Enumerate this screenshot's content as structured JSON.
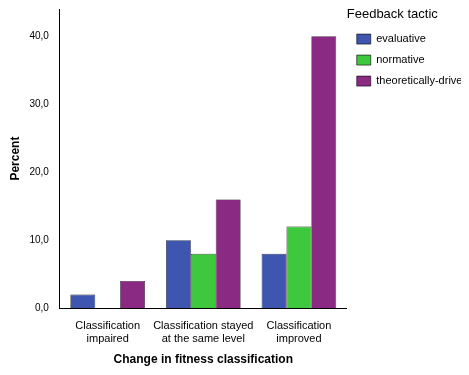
{
  "chart_data": {
    "type": "bar",
    "x_label": "Change in fitness classification",
    "y_label": "Percent",
    "legend_title": "Feedback tactic",
    "categories": [
      "Classification impaired",
      "Classification stayed at the same level",
      "Classification improved"
    ],
    "series": [
      {
        "name": "evaluative",
        "color": "#3e56b0",
        "values": [
          2,
          10,
          8
        ]
      },
      {
        "name": "normative",
        "color": "#3ec83e",
        "values": [
          0,
          8,
          12
        ]
      },
      {
        "name": "theoretically-driven",
        "color": "#8b2a82",
        "values": [
          4,
          16,
          40
        ]
      }
    ],
    "ylim": [
      0,
      44
    ],
    "yticks": [
      {
        "value": 0,
        "label": "0,0"
      },
      {
        "value": 10,
        "label": "10,0"
      },
      {
        "value": 20,
        "label": "20,0"
      },
      {
        "value": 30,
        "label": "30,0"
      },
      {
        "value": 40,
        "label": "40,0"
      }
    ],
    "grid": false,
    "legend": "top-right"
  }
}
